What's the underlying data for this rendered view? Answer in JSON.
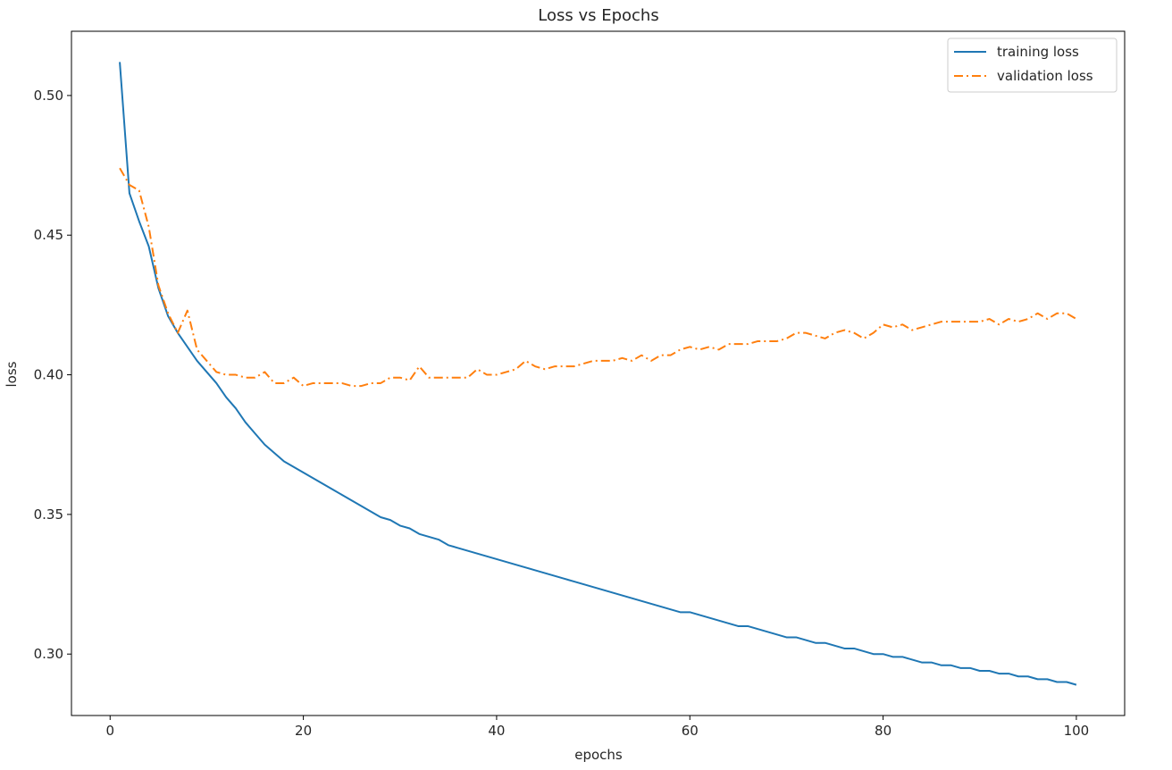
{
  "chart_data": {
    "type": "line",
    "title": "Loss vs Epochs",
    "xlabel": "epochs",
    "ylabel": "loss",
    "xlim": [
      -4,
      105
    ],
    "ylim": [
      0.278,
      0.523
    ],
    "xticks": [
      0,
      20,
      40,
      60,
      80,
      100
    ],
    "yticks": [
      0.3,
      0.35,
      0.4,
      0.45,
      0.5
    ],
    "xtick_labels": [
      "0",
      "20",
      "40",
      "60",
      "80",
      "100"
    ],
    "ytick_labels": [
      "0.30",
      "0.35",
      "0.40",
      "0.45",
      "0.50"
    ],
    "grid": false,
    "legend_position": "top-right",
    "x": [
      1,
      2,
      3,
      4,
      5,
      6,
      7,
      8,
      9,
      10,
      11,
      12,
      13,
      14,
      15,
      16,
      17,
      18,
      19,
      20,
      21,
      22,
      23,
      24,
      25,
      26,
      27,
      28,
      29,
      30,
      31,
      32,
      33,
      34,
      35,
      36,
      37,
      38,
      39,
      40,
      41,
      42,
      43,
      44,
      45,
      46,
      47,
      48,
      49,
      50,
      51,
      52,
      53,
      54,
      55,
      56,
      57,
      58,
      59,
      60,
      61,
      62,
      63,
      64,
      65,
      66,
      67,
      68,
      69,
      70,
      71,
      72,
      73,
      74,
      75,
      76,
      77,
      78,
      79,
      80,
      81,
      82,
      83,
      84,
      85,
      86,
      87,
      88,
      89,
      90,
      91,
      92,
      93,
      94,
      95,
      96,
      97,
      98,
      99,
      100
    ],
    "series": [
      {
        "name": "training loss",
        "color": "#1f77b4",
        "style": "solid",
        "values": [
          0.512,
          0.465,
          0.455,
          0.446,
          0.431,
          0.421,
          0.415,
          0.41,
          0.405,
          0.401,
          0.397,
          0.392,
          0.388,
          0.383,
          0.379,
          0.375,
          0.372,
          0.369,
          0.367,
          0.365,
          0.363,
          0.361,
          0.359,
          0.357,
          0.355,
          0.353,
          0.351,
          0.349,
          0.348,
          0.346,
          0.345,
          0.343,
          0.342,
          0.341,
          0.339,
          0.338,
          0.337,
          0.336,
          0.335,
          0.334,
          0.333,
          0.332,
          0.331,
          0.33,
          0.329,
          0.328,
          0.327,
          0.326,
          0.325,
          0.324,
          0.323,
          0.322,
          0.321,
          0.32,
          0.319,
          0.318,
          0.317,
          0.316,
          0.315,
          0.315,
          0.314,
          0.313,
          0.312,
          0.311,
          0.31,
          0.31,
          0.309,
          0.308,
          0.307,
          0.306,
          0.306,
          0.305,
          0.304,
          0.304,
          0.303,
          0.302,
          0.302,
          0.301,
          0.3,
          0.3,
          0.299,
          0.299,
          0.298,
          0.297,
          0.297,
          0.296,
          0.296,
          0.295,
          0.295,
          0.294,
          0.294,
          0.293,
          0.293,
          0.292,
          0.292,
          0.291,
          0.291,
          0.29,
          0.29,
          0.289
        ]
      },
      {
        "name": "validation loss",
        "color": "#ff7f0e",
        "style": "dashdot",
        "values": [
          0.474,
          0.468,
          0.466,
          0.453,
          0.432,
          0.422,
          0.415,
          0.423,
          0.409,
          0.405,
          0.401,
          0.4,
          0.4,
          0.399,
          0.399,
          0.401,
          0.397,
          0.397,
          0.399,
          0.396,
          0.397,
          0.397,
          0.397,
          0.397,
          0.396,
          0.396,
          0.397,
          0.397,
          0.399,
          0.399,
          0.398,
          0.403,
          0.399,
          0.399,
          0.399,
          0.399,
          0.399,
          0.402,
          0.4,
          0.4,
          0.401,
          0.402,
          0.405,
          0.403,
          0.402,
          0.403,
          0.403,
          0.403,
          0.404,
          0.405,
          0.405,
          0.405,
          0.406,
          0.405,
          0.407,
          0.405,
          0.407,
          0.407,
          0.409,
          0.41,
          0.409,
          0.41,
          0.409,
          0.411,
          0.411,
          0.411,
          0.412,
          0.412,
          0.412,
          0.413,
          0.415,
          0.415,
          0.414,
          0.413,
          0.415,
          0.416,
          0.415,
          0.413,
          0.415,
          0.418,
          0.417,
          0.418,
          0.416,
          0.417,
          0.418,
          0.419,
          0.419,
          0.419,
          0.419,
          0.419,
          0.42,
          0.418,
          0.42,
          0.419,
          0.42,
          0.422,
          0.42,
          0.422,
          0.422,
          0.42
        ]
      }
    ]
  }
}
